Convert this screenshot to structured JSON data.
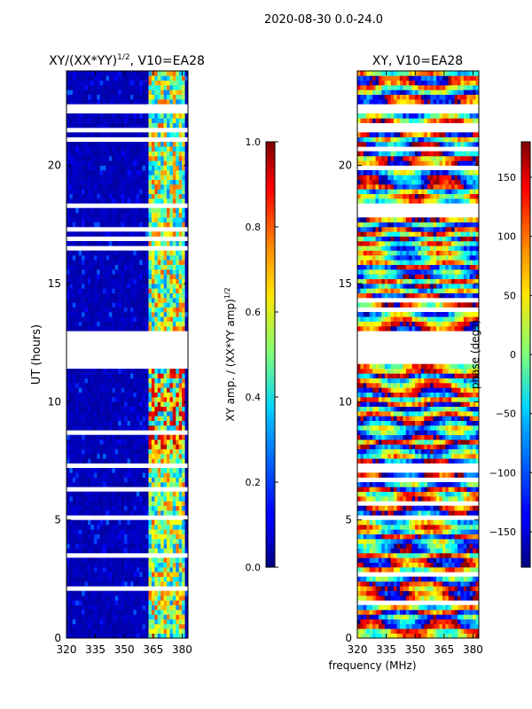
{
  "chart_data": [
    {
      "type": "heatmap",
      "title": "XY/(XX*YY)",
      "title_exponent": "1/2",
      "title_suffix": ", V10=EA28",
      "xlabel": "",
      "ylabel": "UT (hours)",
      "xlim": [
        320,
        383
      ],
      "ylim": [
        0,
        24
      ],
      "x_ticks": [
        "320",
        "335",
        "350",
        "365",
        "380"
      ],
      "x_tick_values": [
        320,
        335,
        350,
        365,
        380
      ],
      "y_ticks": [
        "0",
        "5",
        "10",
        "15",
        "20"
      ],
      "y_tick_values": [
        0,
        5,
        10,
        15,
        20
      ],
      "colorbar": {
        "label": "XY amp. / (XX*YY amp)",
        "label_exponent": "1/2",
        "range": [
          0.0,
          1.0
        ],
        "ticks": [
          "0.0",
          "0.2",
          "0.4",
          "0.6",
          "0.8",
          "1.0"
        ],
        "tick_values": [
          0.0,
          0.2,
          0.4,
          0.6,
          0.8,
          1.0
        ],
        "colormap": "jet"
      },
      "missing_data_bands_hours": [
        [
          11.6,
          13.0
        ],
        [
          22.3,
          22.5
        ],
        [
          21.3,
          21.6
        ],
        [
          7.2,
          7.4
        ],
        [
          5.0,
          5.2
        ]
      ],
      "high_value_region_mhz": [
        362,
        381
      ],
      "note": "Mostly low amplitude (~0.05) below 362 MHz; values 0.3–0.9 in 362–381 MHz channels"
    },
    {
      "type": "heatmap",
      "title": "XY, V10=EA28",
      "xlabel": "frequency (MHz)",
      "ylabel": "",
      "xlim": [
        320,
        383
      ],
      "ylim": [
        0,
        24
      ],
      "x_ticks": [
        "320",
        "335",
        "350",
        "365",
        "380"
      ],
      "x_tick_values": [
        320,
        335,
        350,
        365,
        380
      ],
      "y_ticks": [
        "0",
        "5",
        "10",
        "15",
        "20"
      ],
      "y_tick_values": [
        0,
        5,
        10,
        15,
        20
      ],
      "colorbar": {
        "label": "phase (degs)",
        "range": [
          -180,
          180
        ],
        "ticks": [
          "−150",
          "−100",
          "−50",
          "0",
          "50",
          "100",
          "150"
        ],
        "tick_values": [
          -150,
          -100,
          -50,
          0,
          50,
          100,
          150
        ],
        "colormap": "jet"
      },
      "missing_data_bands_hours": [
        [
          11.6,
          13.0
        ],
        [
          22.3,
          22.5
        ],
        [
          21.3,
          21.6
        ],
        [
          7.2,
          7.4
        ],
        [
          5.0,
          5.2
        ]
      ],
      "note": "Phase varies across full −180 to 180 range, noisy structure"
    }
  ],
  "suptitle": "2020-08-30 0.0-24.0",
  "shared_xlabel": "frequency (MHz)"
}
